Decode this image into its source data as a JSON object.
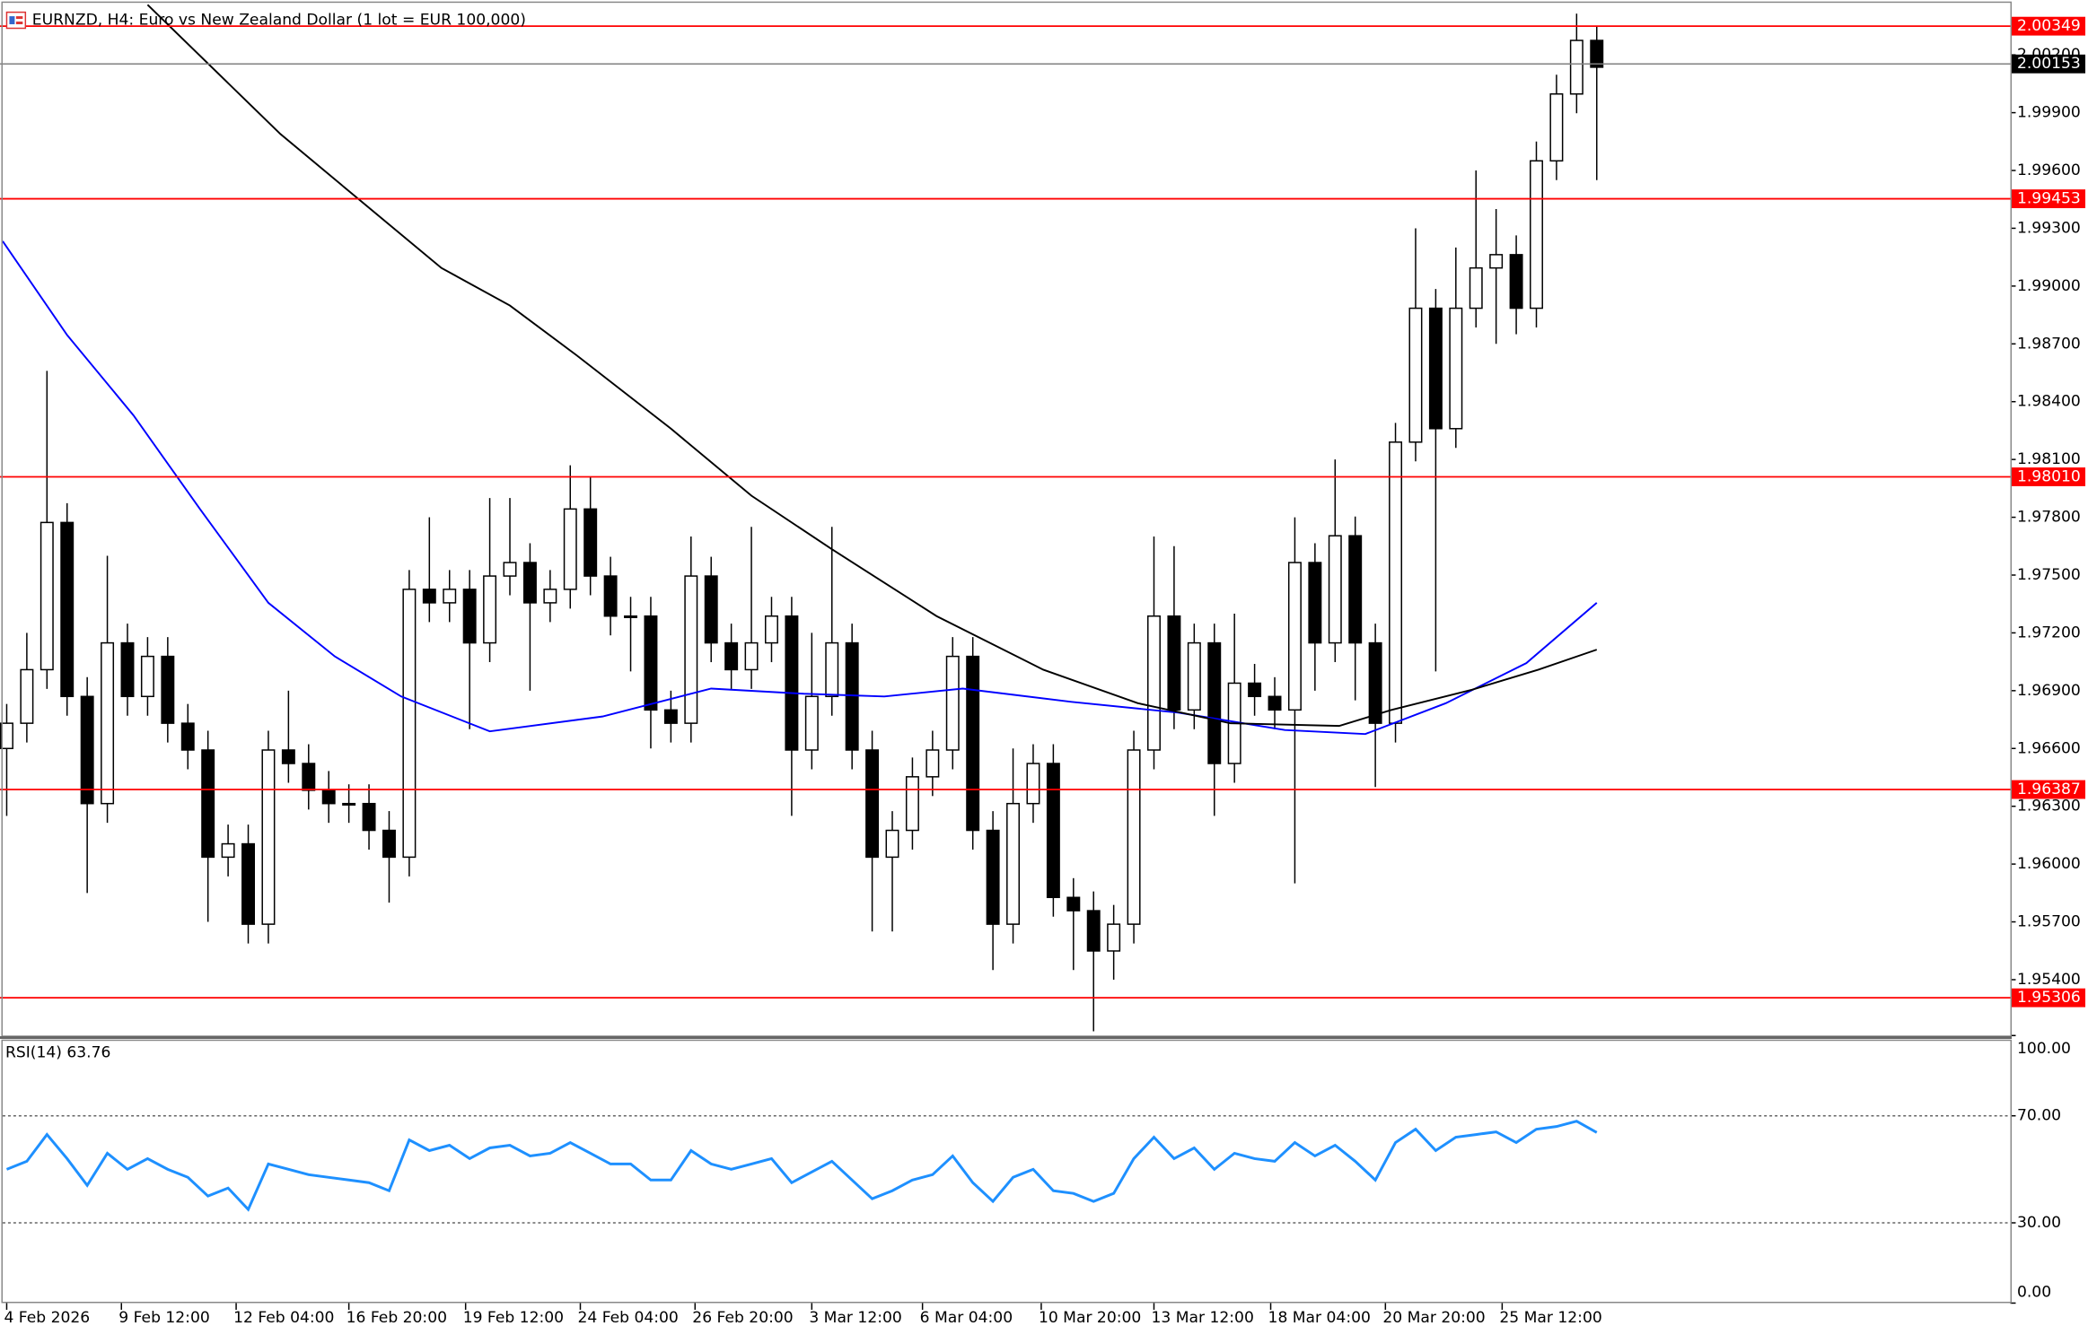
{
  "chart_data": [
    {
      "type": "candlestick",
      "title": "EURNZD, H4:  Euro vs New Zealand Dollar (1 lot = EUR 100,000)",
      "xlim": [
        -0.2,
        99.55
      ],
      "xticks": [
        {
          "value": 0,
          "label": "4 Feb 2026"
        },
        {
          "value": 5.7,
          "label": "9 Feb 12:00"
        },
        {
          "value": 11.4,
          "label": "12 Feb 04:00"
        },
        {
          "value": 17,
          "label": "16 Feb 20:00"
        },
        {
          "value": 22.8,
          "label": "19 Feb 12:00"
        },
        {
          "value": 28.5,
          "label": "24 Feb 04:00"
        },
        {
          "value": 34.2,
          "label": "26 Feb 20:00"
        },
        {
          "value": 40,
          "label": "3 Mar 12:00"
        },
        {
          "value": 45.5,
          "label": "6 Mar 04:00"
        },
        {
          "value": 51.4,
          "label": "10 Mar 20:00"
        },
        {
          "value": 57,
          "label": "13 Mar 12:00"
        },
        {
          "value": 62.8,
          "label": "18 Mar 04:00"
        },
        {
          "value": 68.5,
          "label": "20 Mar 20:00"
        },
        {
          "value": 74.3,
          "label": "25 Mar 12:00"
        }
      ],
      "ylim": [
        1.9511,
        2.0047
      ],
      "yticks": [
        {
          "value": 2.002,
          "label": "2.00200"
        },
        {
          "value": 1.999,
          "label": "1.99900"
        },
        {
          "value": 1.996,
          "label": "1.99600"
        },
        {
          "value": 1.993,
          "label": "1.99300"
        },
        {
          "value": 1.99,
          "label": "1.99000"
        },
        {
          "value": 1.987,
          "label": "1.98700"
        },
        {
          "value": 1.984,
          "label": "1.98400"
        },
        {
          "value": 1.981,
          "label": "1.98100"
        },
        {
          "value": 1.978,
          "label": "1.97800"
        },
        {
          "value": 1.975,
          "label": "1.97500"
        },
        {
          "value": 1.972,
          "label": "1.97200"
        },
        {
          "value": 1.969,
          "label": "1.96900"
        },
        {
          "value": 1.966,
          "label": "1.96600"
        },
        {
          "value": 1.963,
          "label": "1.96300"
        },
        {
          "value": 1.96,
          "label": "1.96000"
        },
        {
          "value": 1.957,
          "label": "1.95700"
        },
        {
          "value": 1.954,
          "label": "1.95400"
        }
      ],
      "open": [
        1.966,
        1.96731,
        1.97009,
        1.97773,
        1.9687,
        1.96314,
        1.97148,
        1.9687,
        1.97078,
        1.96731,
        1.96592,
        1.96036,
        1.96105,
        1.95688,
        1.96592,
        1.96522,
        1.96383,
        1.96314,
        1.96314,
        1.96175,
        1.96036,
        1.97426,
        1.97356,
        1.97426,
        1.97148,
        1.97495,
        1.97565,
        1.97356,
        1.97426,
        1.97843,
        1.97495,
        1.97287,
        1.97287,
        1.968,
        1.96731,
        1.97495,
        1.97148,
        1.97009,
        1.97148,
        1.97287,
        1.96592,
        1.9687,
        1.97148,
        1.96592,
        1.96036,
        1.96175,
        1.96453,
        1.96592,
        1.97078,
        1.96175,
        1.95688,
        1.96314,
        1.96522,
        1.95827,
        1.95758,
        1.95549,
        1.95688,
        1.96592,
        1.97287,
        1.968,
        1.97148,
        1.96522,
        1.96939,
        1.9687,
        1.968,
        1.97565,
        1.97148,
        1.97704,
        1.97148,
        1.96731,
        1.9819,
        1.98885,
        1.9826,
        1.98885,
        1.99094,
        1.99163,
        1.98885,
        1.9965,
        1.99997,
        2.00275
      ],
      "high": [
        1.96831,
        1.972,
        1.9856,
        1.97873,
        1.9697,
        1.976,
        1.97248,
        1.97178,
        1.97178,
        1.96831,
        1.96692,
        1.96205,
        1.96205,
        1.96692,
        1.969,
        1.96622,
        1.96483,
        1.96414,
        1.96414,
        1.96275,
        1.97526,
        1.978,
        1.97526,
        1.97526,
        1.979,
        1.979,
        1.97665,
        1.97526,
        1.9807,
        1.9801,
        1.97595,
        1.97387,
        1.97387,
        1.969,
        1.977,
        1.97595,
        1.97248,
        1.9775,
        1.97387,
        1.97387,
        1.972,
        1.9775,
        1.97248,
        1.96692,
        1.96275,
        1.96553,
        1.96692,
        1.97178,
        1.97178,
        1.96275,
        1.966,
        1.96622,
        1.96622,
        1.95927,
        1.95858,
        1.95788,
        1.96692,
        1.977,
        1.9765,
        1.97248,
        1.97248,
        1.973,
        1.97039,
        1.9697,
        1.978,
        1.97665,
        1.981,
        1.97804,
        1.97248,
        1.9829,
        1.993,
        1.98985,
        1.992,
        1.996,
        1.994,
        1.99263,
        1.9975,
        2.00097,
        2.00414,
        2.00349
      ],
      "low": [
        1.9625,
        1.96631,
        1.96909,
        1.9677,
        1.9585,
        1.96214,
        1.9677,
        1.9677,
        1.96631,
        1.96492,
        1.957,
        1.95936,
        1.95588,
        1.95588,
        1.96422,
        1.96283,
        1.96214,
        1.96214,
        1.96075,
        1.958,
        1.95936,
        1.97256,
        1.97256,
        1.967,
        1.97048,
        1.97395,
        1.969,
        1.97256,
        1.97326,
        1.97395,
        1.97187,
        1.97,
        1.966,
        1.96631,
        1.96631,
        1.97048,
        1.96909,
        1.96909,
        1.97048,
        1.9625,
        1.96492,
        1.9677,
        1.96492,
        1.9565,
        1.9565,
        1.96075,
        1.96353,
        1.96492,
        1.96075,
        1.9545,
        1.95588,
        1.96214,
        1.95727,
        1.9545,
        1.95132,
        1.954,
        1.95588,
        1.96492,
        1.967,
        1.967,
        1.9625,
        1.96422,
        1.9677,
        1.967,
        1.959,
        1.969,
        1.97048,
        1.9685,
        1.964,
        1.96631,
        1.9809,
        1.97,
        1.9816,
        1.98785,
        1.987,
        1.9875,
        1.98785,
        1.9955,
        1.99897,
        1.9955
      ],
      "close": [
        1.96731,
        1.97009,
        1.97773,
        1.9687,
        1.96314,
        1.97148,
        1.9687,
        1.97078,
        1.96731,
        1.96592,
        1.96036,
        1.96105,
        1.95688,
        1.96592,
        1.96522,
        1.96383,
        1.96314,
        1.96314,
        1.96175,
        1.96036,
        1.97426,
        1.97356,
        1.97426,
        1.97148,
        1.97495,
        1.97565,
        1.97356,
        1.97426,
        1.97843,
        1.97495,
        1.97287,
        1.97287,
        1.968,
        1.96731,
        1.97495,
        1.97148,
        1.97009,
        1.97148,
        1.97287,
        1.96592,
        1.9687,
        1.97148,
        1.96592,
        1.96036,
        1.96175,
        1.96453,
        1.96592,
        1.97078,
        1.96175,
        1.95688,
        1.96314,
        1.96522,
        1.95827,
        1.95758,
        1.95549,
        1.95688,
        1.96592,
        1.97287,
        1.968,
        1.97148,
        1.96522,
        1.96939,
        1.9687,
        1.968,
        1.97565,
        1.97148,
        1.97704,
        1.97148,
        1.96731,
        1.9819,
        1.98885,
        1.9826,
        1.98885,
        1.99094,
        1.99163,
        1.98885,
        1.9965,
        1.99997,
        2.00275,
        2.00136
      ],
      "up_color": "#ffffff",
      "down_color": "#000000",
      "moving_averages": [
        {
          "color": "#0000ff",
          "x": [
            -0.2,
            3,
            6.3,
            9.6,
            13,
            16.3,
            19.6,
            24,
            29.6,
            35,
            39.6,
            43.6,
            47.5,
            52.9,
            58.2,
            63.5,
            67.5,
            71.5,
            75.5,
            79
          ],
          "values": [
            1.99233,
            1.98746,
            1.98329,
            1.97843,
            1.97356,
            1.97078,
            1.9687,
            1.96689,
            1.96766,
            1.96911,
            1.96884,
            1.9687,
            1.96911,
            1.96842,
            1.96786,
            1.96696,
            1.96675,
            1.96835,
            1.97043,
            1.97356
          ]
        },
        {
          "color": "#000000",
          "x": [
            7,
            13.6,
            17.6,
            21.6,
            25,
            28.3,
            33,
            37,
            41,
            46.2,
            51.5,
            56.2,
            60.8,
            66.2,
            68.8,
            72.8,
            76.1,
            79
          ],
          "values": [
            2.0046,
            1.99789,
            1.99441,
            1.99094,
            1.98899,
            1.98642,
            1.9826,
            1.97912,
            1.97634,
            1.97287,
            1.97009,
            1.96835,
            1.96731,
            1.96717,
            1.968,
            1.96905,
            1.97009,
            1.97113
          ]
        }
      ],
      "levels": [
        2.00349,
        1.99453,
        {
          "value": 1.9801,
          "label": "1.98010"
        },
        1.96387,
        1.95306
      ],
      "level_color": "#ff0000",
      "current_price": 2.00153,
      "current_price_color": "#000000"
    },
    {
      "type": "line",
      "title": "RSI(14) 63.76",
      "xlim": [
        -0.2,
        99.55
      ],
      "ylim": [
        0,
        100
      ],
      "yticks": [
        {
          "value": 100,
          "label": "100.00"
        },
        {
          "value": 70,
          "label": "70.00"
        },
        {
          "value": 30,
          "label": "30.00"
        },
        {
          "value": 0,
          "label": "0.00"
        }
      ],
      "color": "#1e90ff",
      "values": [
        50,
        53,
        63,
        54,
        44,
        56,
        50,
        54,
        50,
        47,
        40,
        43,
        35,
        52,
        50,
        48,
        47,
        46,
        45,
        42,
        61,
        57,
        59,
        54,
        58,
        59,
        55,
        56,
        60,
        56,
        52,
        52,
        46,
        46,
        57,
        52,
        50,
        52,
        54,
        45,
        49,
        53,
        46,
        39,
        42,
        46,
        48,
        55,
        45,
        38,
        47,
        50,
        42,
        41,
        38,
        41,
        54,
        62,
        54,
        58,
        50,
        56,
        54,
        53,
        60,
        55,
        59,
        53,
        46,
        60,
        65,
        57,
        62,
        63,
        64,
        60,
        65,
        66,
        68,
        63.76
      ]
    }
  ]
}
